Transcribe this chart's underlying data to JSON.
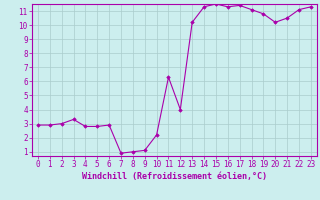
{
  "x": [
    0,
    1,
    2,
    3,
    4,
    5,
    6,
    7,
    8,
    9,
    10,
    11,
    12,
    13,
    14,
    15,
    16,
    17,
    18,
    19,
    20,
    21,
    22,
    23
  ],
  "y": [
    2.9,
    2.9,
    3.0,
    3.3,
    2.8,
    2.8,
    2.9,
    0.9,
    1.0,
    1.1,
    2.2,
    6.3,
    4.0,
    10.2,
    11.3,
    11.5,
    11.3,
    11.4,
    11.1,
    10.8,
    10.2,
    10.5,
    11.1,
    11.3
  ],
  "line_color": "#aa00aa",
  "marker": "D",
  "marker_size": 1.8,
  "bg_color": "#cceeee",
  "grid_color": "#aacccc",
  "axis_color": "#aa00aa",
  "tick_color": "#aa00aa",
  "xlabel": "Windchill (Refroidissement éolien,°C)",
  "xlim_min": -0.5,
  "xlim_max": 23.5,
  "ylim_min": 0.7,
  "ylim_max": 11.5,
  "yticks": [
    1,
    2,
    3,
    4,
    5,
    6,
    7,
    8,
    9,
    10,
    11
  ],
  "xticks": [
    0,
    1,
    2,
    3,
    4,
    5,
    6,
    7,
    8,
    9,
    10,
    11,
    12,
    13,
    14,
    15,
    16,
    17,
    18,
    19,
    20,
    21,
    22,
    23
  ],
  "label_fontsize": 6.0,
  "tick_fontsize": 5.5,
  "linewidth": 0.8
}
